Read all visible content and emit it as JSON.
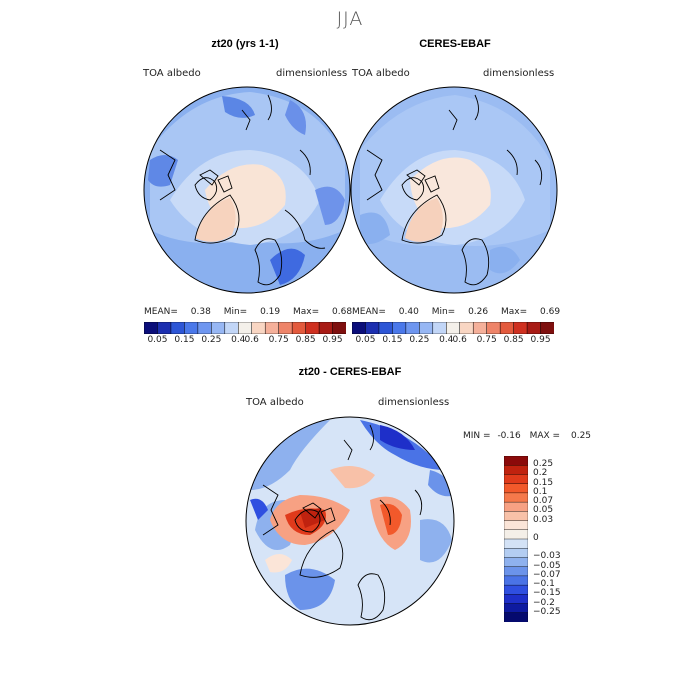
{
  "figure": {
    "title": "JJA",
    "panels": [
      {
        "title": "zt20 (yrs 1-1)",
        "field_label": "TOA albedo",
        "units_label": "dimensionless",
        "stats": {
          "mean_label": "MEAN=",
          "mean": "0.38",
          "min_label": "Min=",
          "min": "0.19",
          "max_label": "Max=",
          "max": "0.68"
        }
      },
      {
        "title": "CERES-EBAF",
        "field_label": "TOA albedo",
        "units_label": "dimensionless",
        "stats": {
          "mean_label": "MEAN=",
          "mean": "0.40",
          "min_label": "Min=",
          "min": "0.26",
          "max_label": "Max=",
          "max": "0.69"
        }
      },
      {
        "title": "zt20 - CERES-EBAF",
        "field_label": "TOA albedo",
        "units_label": "dimensionless",
        "stats": {
          "min_label": "MIN =",
          "min": "-0.16",
          "max_label": "MAX =",
          "max": "0.25"
        }
      }
    ],
    "albedo_colorbar": {
      "tick_labels": [
        "0.05",
        "0.15",
        "0.25",
        "0.4",
        "0.6",
        "0.75",
        "0.85",
        "0.95"
      ],
      "colors": [
        "#0b0e7a",
        "#1c2fb0",
        "#2d56d6",
        "#4a78ea",
        "#6e96f0",
        "#97b7f4",
        "#c2d6f7",
        "#f4f0ea",
        "#f9d6c3",
        "#f5b09a",
        "#ee8469",
        "#e35a3d",
        "#cf3020",
        "#a81b15",
        "#7e0f0e"
      ]
    },
    "diff_colorbar": {
      "tick_labels": [
        "0.25",
        "0.2",
        "0.15",
        "0.1",
        "0.07",
        "0.05",
        "0.03",
        "0",
        "−0.03",
        "−0.05",
        "−0.07",
        "−0.1",
        "−0.15",
        "−0.2",
        "−0.25"
      ],
      "colors": [
        "#8b0a0a",
        "#c0220f",
        "#e03a1b",
        "#f2592b",
        "#f5794b",
        "#f7a183",
        "#f8c1a8",
        "#fbe5d8",
        "#f4efe8",
        "#d3e2f6",
        "#b3cdf2",
        "#8eb1ee",
        "#6b93ea",
        "#4a73e6",
        "#2f4fe0",
        "#1e2fc9",
        "#0e1aa0",
        "#050a6e"
      ]
    }
  }
}
